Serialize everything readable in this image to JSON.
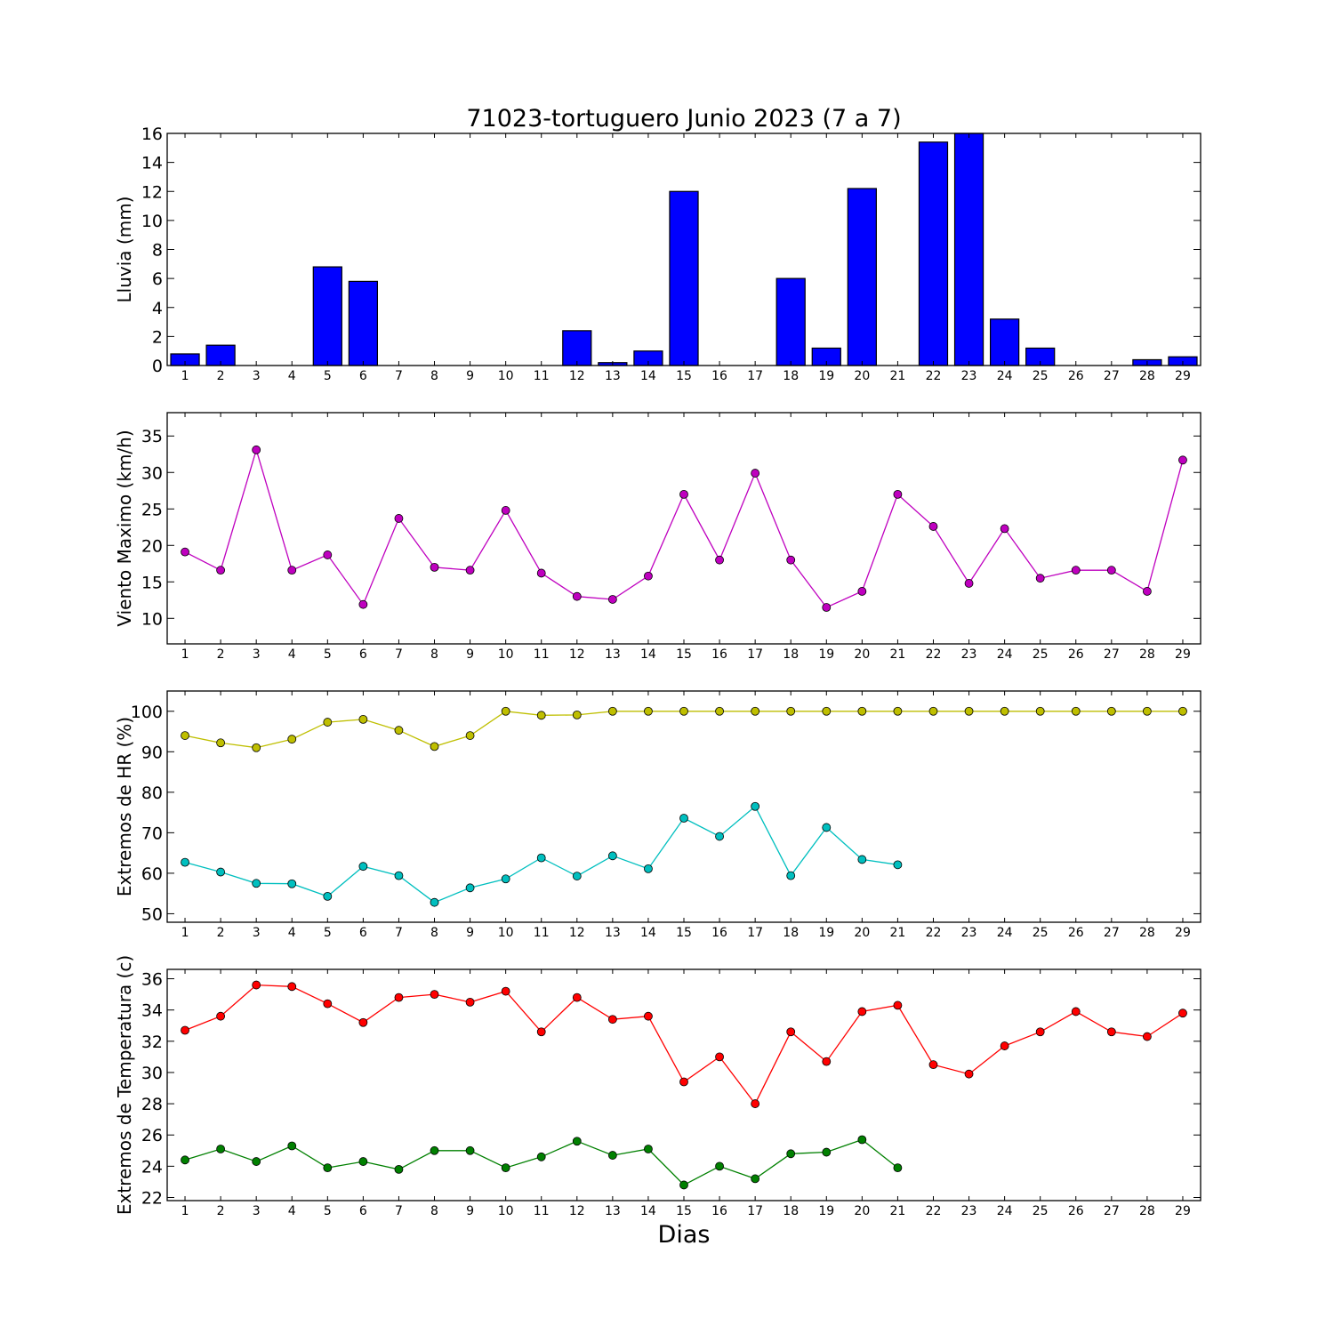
{
  "chart_data": [
    {
      "type": "bar",
      "title": "71023-tortuguero Junio 2023  (7 a 7)",
      "xlabel": "",
      "ylabel": "Lluvia (mm)",
      "x": [
        1,
        2,
        3,
        4,
        5,
        6,
        7,
        8,
        9,
        10,
        11,
        12,
        13,
        14,
        15,
        16,
        17,
        18,
        19,
        20,
        21,
        22,
        23,
        24,
        25,
        26,
        27,
        28,
        29
      ],
      "xlim": [
        0.5,
        29.5
      ],
      "ylim": [
        0,
        16
      ],
      "yticks": [
        0,
        2,
        4,
        6,
        8,
        10,
        12,
        14,
        16
      ],
      "series": [
        {
          "color": "#0000ff",
          "values": [
            0.8,
            1.4,
            0,
            0,
            6.8,
            5.8,
            0,
            0,
            0,
            0,
            0,
            2.4,
            0.2,
            1.0,
            12.0,
            0,
            0,
            6.0,
            1.2,
            12.2,
            0,
            15.4,
            16.0,
            3.2,
            1.2,
            0,
            0,
            0.4,
            0.6
          ]
        }
      ]
    },
    {
      "type": "line",
      "title": "",
      "xlabel": "",
      "ylabel": "Viento Maximo (km/h)",
      "x": [
        1,
        2,
        3,
        4,
        5,
        6,
        7,
        8,
        9,
        10,
        11,
        12,
        13,
        14,
        15,
        16,
        17,
        18,
        19,
        20,
        21,
        22,
        23,
        24,
        25,
        26,
        27,
        28,
        29
      ],
      "xlim": [
        0.5,
        29.5
      ],
      "ylim": [
        6.5,
        38.2
      ],
      "yticks": [
        10,
        15,
        20,
        25,
        30,
        35
      ],
      "series": [
        {
          "color": "#bf00bf",
          "values": [
            19.1,
            16.6,
            33.1,
            16.6,
            18.7,
            11.9,
            23.7,
            17.0,
            16.6,
            24.8,
            16.2,
            13.0,
            12.6,
            15.8,
            27.0,
            18.0,
            29.9,
            18.0,
            11.5,
            13.7,
            27.0,
            22.6,
            14.8,
            22.3,
            15.5,
            16.6,
            16.6,
            13.7,
            31.7
          ]
        }
      ]
    },
    {
      "type": "line",
      "title": "",
      "xlabel": "",
      "ylabel": "Extremos de HR (%)",
      "x": [
        1,
        2,
        3,
        4,
        5,
        6,
        7,
        8,
        9,
        10,
        11,
        12,
        13,
        14,
        15,
        16,
        17,
        18,
        19,
        20,
        21,
        22,
        23,
        24,
        25,
        26,
        27,
        28,
        29
      ],
      "xlim": [
        0.5,
        29.5
      ],
      "ylim": [
        47.9,
        105
      ],
      "yticks": [
        50,
        60,
        70,
        80,
        90,
        100
      ],
      "series": [
        {
          "color": "#bfbf00",
          "values": [
            94,
            92.2,
            91,
            93.1,
            97.3,
            98,
            95.3,
            91.3,
            94,
            100,
            99,
            99.1,
            100,
            100,
            100,
            100,
            100,
            100,
            100,
            100,
            100,
            100,
            100,
            100,
            100,
            100,
            100,
            100,
            100
          ]
        },
        {
          "color": "#00bfbf",
          "values": [
            62.7,
            60.3,
            57.5,
            57.4,
            54.3,
            61.7,
            59.4,
            52.8,
            56.4,
            58.6,
            63.8,
            59.3,
            64.3,
            61.1,
            73.6,
            69.1,
            76.5,
            59.4,
            71.3,
            63.4,
            62.1,
            null,
            null,
            null,
            null,
            null,
            null,
            null,
            null
          ]
        }
      ]
    },
    {
      "type": "line",
      "title": "",
      "xlabel": "Dias",
      "ylabel": "Extremos de Temperatura (c)",
      "x": [
        1,
        2,
        3,
        4,
        5,
        6,
        7,
        8,
        9,
        10,
        11,
        12,
        13,
        14,
        15,
        16,
        17,
        18,
        19,
        20,
        21,
        22,
        23,
        24,
        25,
        26,
        27,
        28,
        29
      ],
      "xlim": [
        0.5,
        29.5
      ],
      "ylim": [
        21.8,
        36.6
      ],
      "yticks": [
        22,
        24,
        26,
        28,
        30,
        32,
        34,
        36
      ],
      "series": [
        {
          "color": "#ff0000",
          "values": [
            32.7,
            33.6,
            35.6,
            35.5,
            34.4,
            33.2,
            34.8,
            35.0,
            34.5,
            35.2,
            32.6,
            34.8,
            33.4,
            33.6,
            29.4,
            31.0,
            28.0,
            32.6,
            30.7,
            33.9,
            34.3,
            30.5,
            29.9,
            31.7,
            32.6,
            33.9,
            32.6,
            32.3,
            33.8
          ]
        },
        {
          "color": "#008000",
          "values": [
            24.4,
            25.1,
            24.3,
            25.3,
            23.9,
            24.3,
            23.8,
            25.0,
            25.0,
            23.9,
            24.6,
            25.6,
            24.7,
            25.1,
            22.8,
            24.0,
            23.2,
            24.8,
            24.9,
            25.7,
            23.9,
            null,
            null,
            null,
            null,
            null,
            null,
            null,
            null
          ]
        }
      ]
    }
  ]
}
